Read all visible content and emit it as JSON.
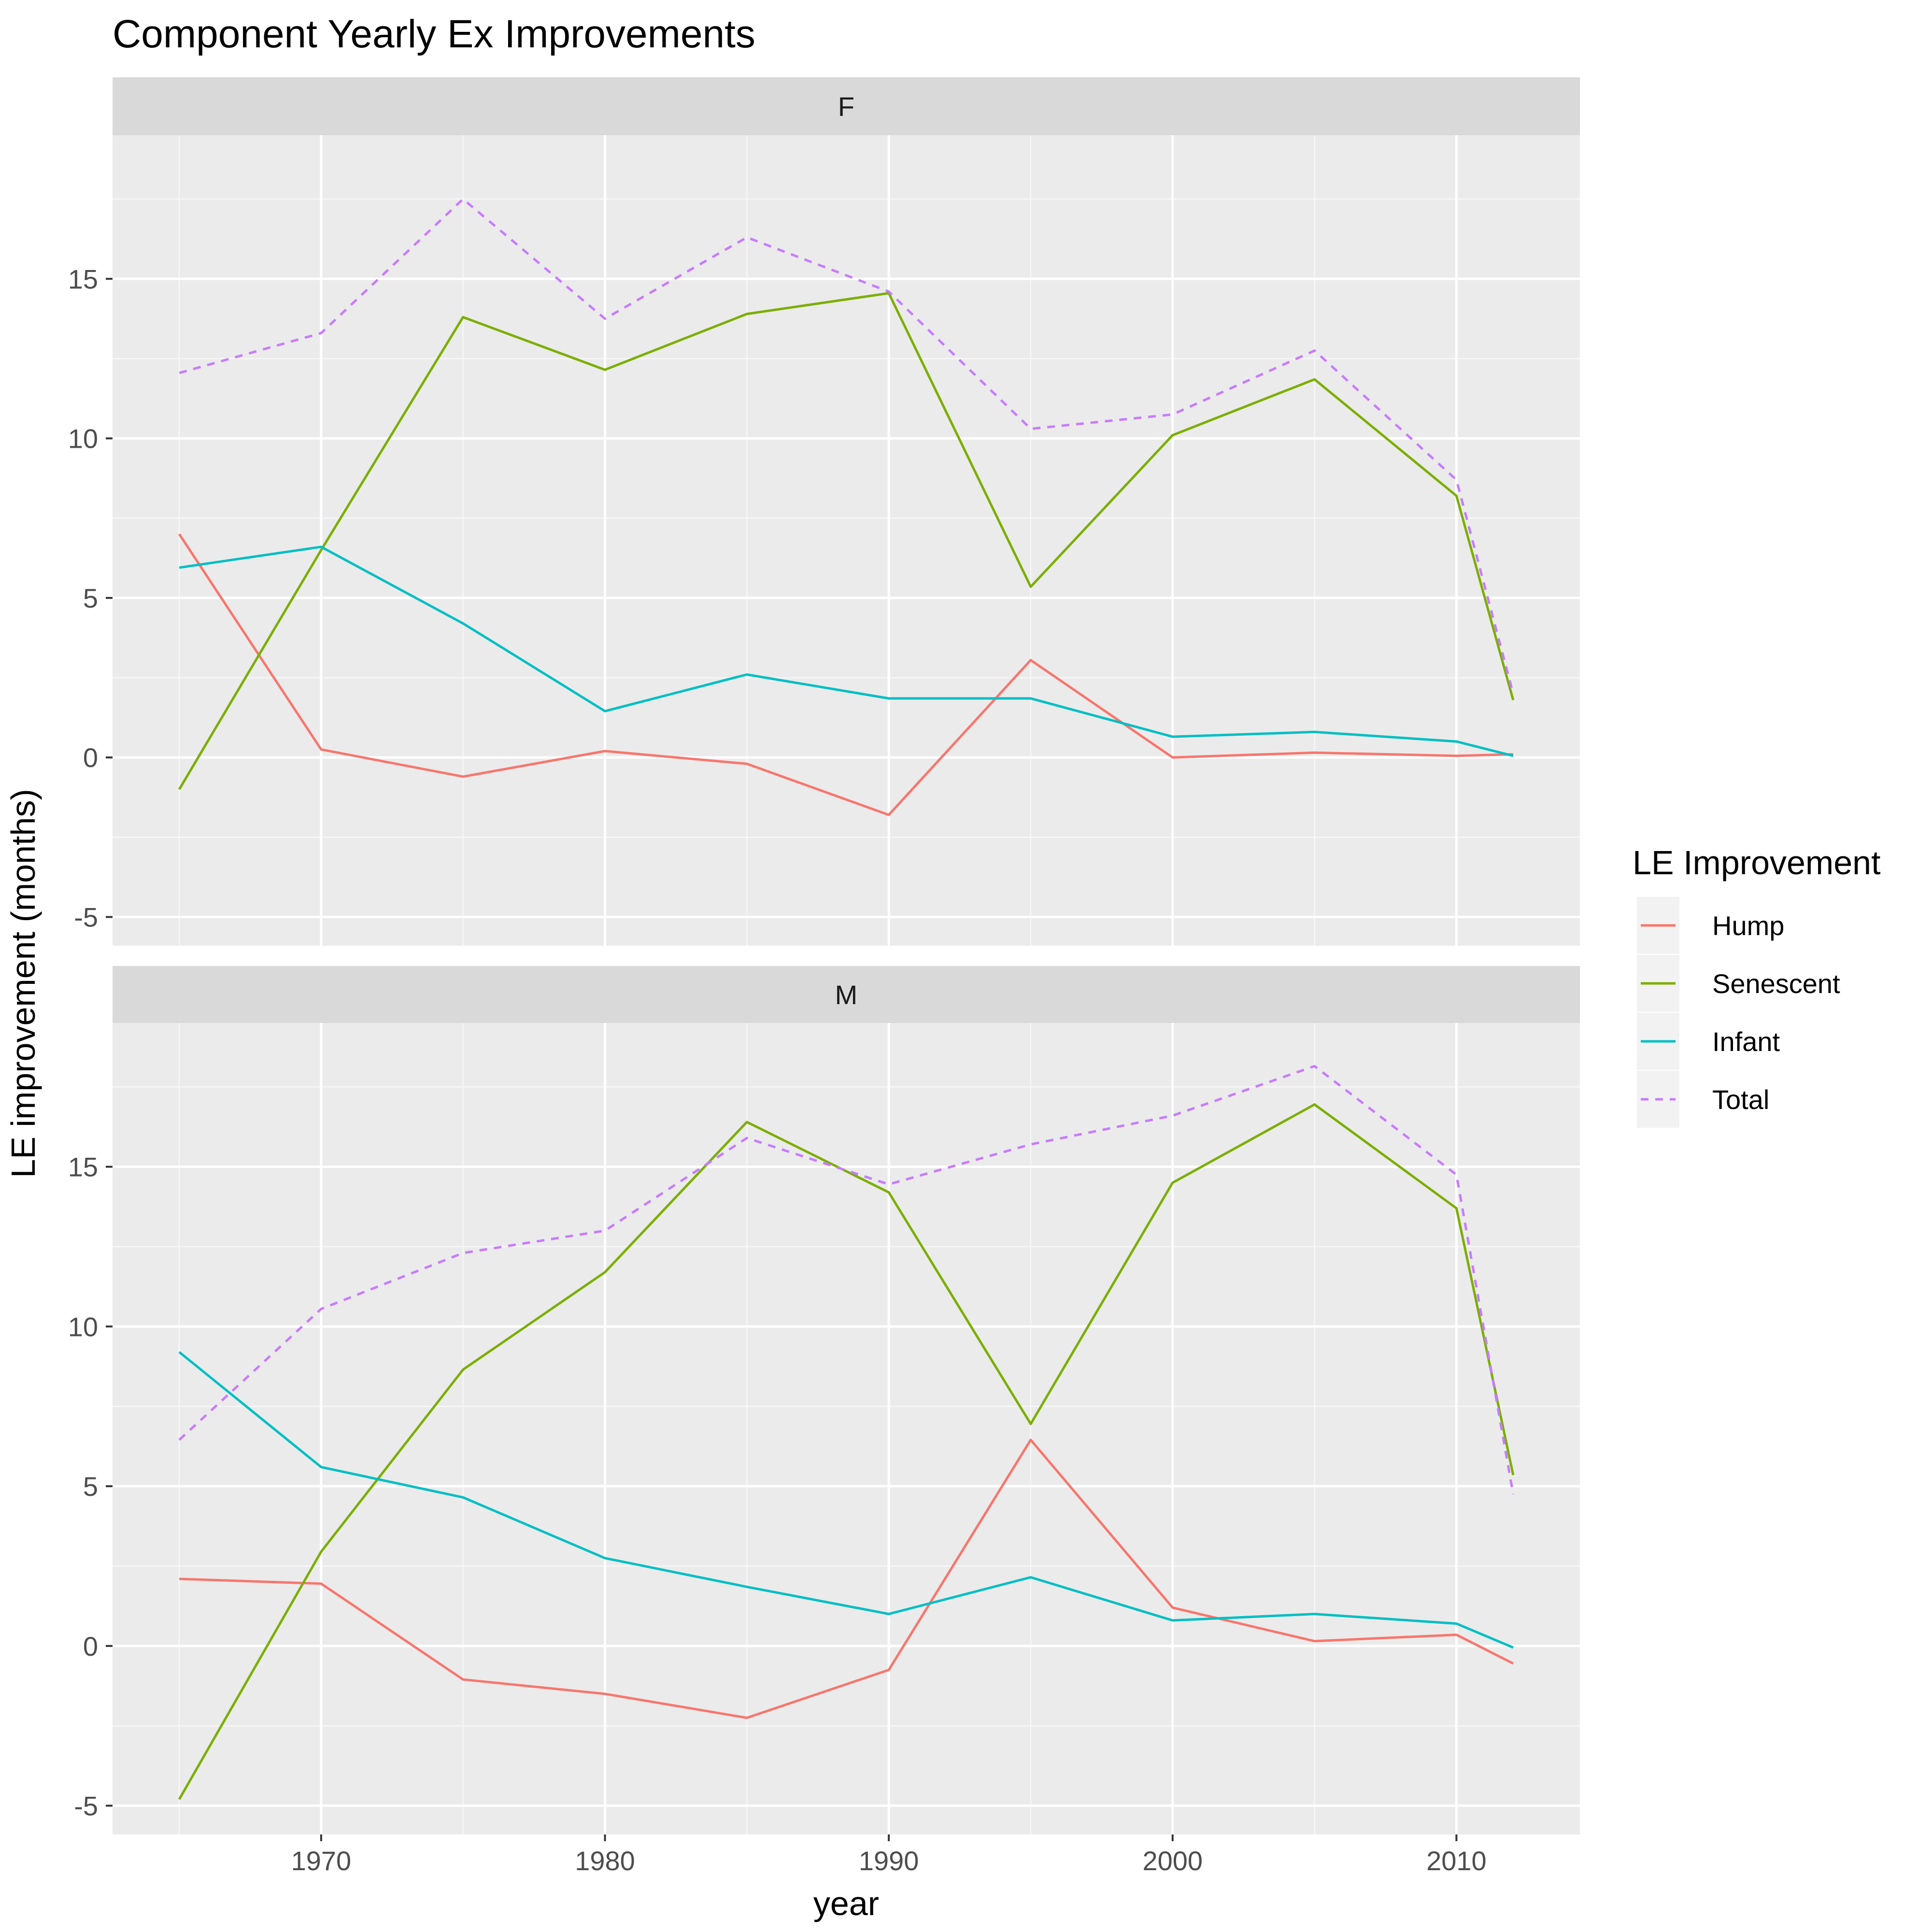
{
  "chart_data": {
    "type": "line",
    "title": "Component Yearly Ex Improvements",
    "xlabel": "year",
    "ylabel": "LE improvement (months)",
    "xlim": [
      1962.65,
      2014.35
    ],
    "ylim": [
      -5.9,
      19.5
    ],
    "x_ticks": [
      1970,
      1980,
      1990,
      2000,
      2010
    ],
    "y_ticks": [
      -5,
      0,
      5,
      10,
      15
    ],
    "grid": true,
    "legend": {
      "title": "LE Improvement",
      "position": "right"
    },
    "x": [
      1965,
      1970,
      1975,
      1980,
      1985,
      1990,
      1995,
      2000,
      2005,
      2010,
      2012
    ],
    "series_styles": [
      {
        "name": "Hump",
        "color": "#F8766D",
        "dashed": false
      },
      {
        "name": "Senescent",
        "color": "#7CAE00",
        "dashed": false
      },
      {
        "name": "Infant",
        "color": "#00BFC4",
        "dashed": false
      },
      {
        "name": "Total",
        "color": "#C77CFF",
        "dashed": true
      }
    ],
    "panels": [
      {
        "label": "F",
        "series": [
          {
            "name": "Hump",
            "values": [
              7.0,
              0.25,
              -0.6,
              0.2,
              -0.2,
              -1.8,
              3.05,
              0.0,
              0.15,
              0.05,
              0.1
            ]
          },
          {
            "name": "Senescent",
            "values": [
              -1.0,
              6.5,
              13.8,
              12.15,
              13.9,
              14.55,
              5.35,
              10.1,
              11.85,
              8.2,
              1.8
            ]
          },
          {
            "name": "Infant",
            "values": [
              5.95,
              6.6,
              4.2,
              1.45,
              2.6,
              1.85,
              1.85,
              0.65,
              0.8,
              0.5,
              0.05
            ]
          },
          {
            "name": "Total",
            "values": [
              12.05,
              13.3,
              17.5,
              13.75,
              16.3,
              14.6,
              10.3,
              10.75,
              12.75,
              8.7,
              2.0
            ]
          }
        ]
      },
      {
        "label": "M",
        "series": [
          {
            "name": "Hump",
            "values": [
              2.1,
              1.95,
              -1.05,
              -1.5,
              -2.25,
              -0.75,
              6.45,
              1.2,
              0.15,
              0.35,
              -0.55
            ]
          },
          {
            "name": "Senescent",
            "values": [
              -4.8,
              2.95,
              8.65,
              11.7,
              16.4,
              14.2,
              6.95,
              14.5,
              16.95,
              13.7,
              5.35
            ]
          },
          {
            "name": "Infant",
            "values": [
              9.2,
              5.6,
              4.65,
              2.75,
              1.85,
              1.0,
              2.15,
              0.8,
              1.0,
              0.7,
              -0.05
            ]
          },
          {
            "name": "Total",
            "values": [
              6.45,
              10.55,
              12.3,
              13.0,
              15.9,
              14.45,
              15.7,
              16.6,
              18.15,
              14.75,
              4.75
            ]
          }
        ]
      }
    ]
  }
}
